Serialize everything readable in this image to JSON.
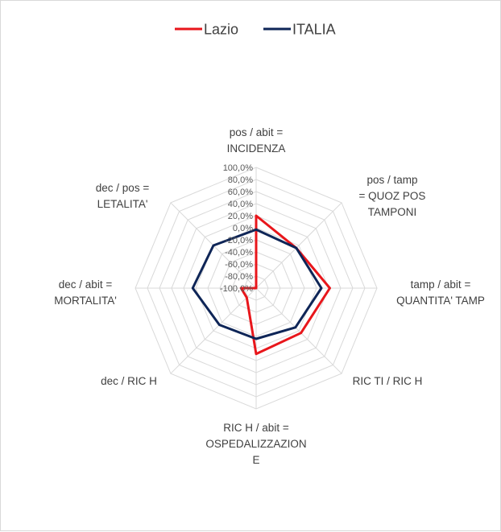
{
  "chart_data": {
    "type": "radar",
    "categories": [
      [
        "pos / abit =",
        "INCIDENZA"
      ],
      [
        "pos / tamp",
        "= QUOZ POS",
        "TAMPONI"
      ],
      [
        "tamp / abit =",
        "QUANTITA' TAMP"
      ],
      [
        "RIC TI / RIC H"
      ],
      [
        "RIC H / abit =",
        "OSPEDALIZZAZION",
        "E"
      ],
      [
        "dec  / RIC H"
      ],
      [
        "dec / abit =",
        "MORTALITA'"
      ],
      [
        "dec / pos =",
        "LETALITA'"
      ]
    ],
    "ticks": [
      "100,0%",
      "80,0%",
      "60,0%",
      "40,0%",
      "20,0%",
      "0,0%",
      "-20,0%",
      "-40,0%",
      "-60,0%",
      "-80,0%",
      "-100,0%"
    ],
    "rmin": -100,
    "rmax": 100,
    "series": [
      {
        "name": "Lazio",
        "color": "#e8161b",
        "values": [
          20,
          -6,
          22,
          5,
          9,
          -78,
          -75,
          -100
        ]
      },
      {
        "name": "ITALIA",
        "color": "#0e2557",
        "values": [
          -3,
          -6,
          8,
          -8,
          -16,
          -14,
          5,
          0
        ]
      }
    ],
    "grid": true,
    "legend": "top"
  }
}
